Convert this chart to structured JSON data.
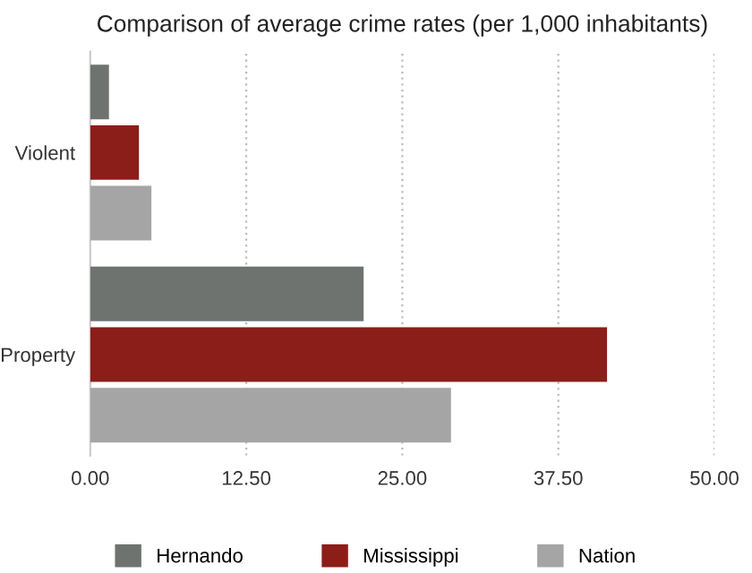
{
  "chart_data": {
    "type": "bar",
    "orientation": "horizontal",
    "title": "Comparison of average crime rates (per 1,000 inhabitants)",
    "categories": [
      "Violent",
      "Property"
    ],
    "series": [
      {
        "name": "Hernando",
        "color": "#6e7370",
        "values": [
          1.5,
          21.9
        ]
      },
      {
        "name": "Mississippi",
        "color": "#8b1e18",
        "values": [
          3.9,
          41.4
        ]
      },
      {
        "name": "Nation",
        "color": "#a5a5a5",
        "values": [
          4.9,
          28.9
        ]
      }
    ],
    "xlim": [
      0,
      50
    ],
    "xticks": [
      {
        "value": 0,
        "label": "0.00"
      },
      {
        "value": 12.5,
        "label": "12.50"
      },
      {
        "value": 25,
        "label": "25.00"
      },
      {
        "value": 37.5,
        "label": "37.50"
      },
      {
        "value": 50,
        "label": "50.00"
      }
    ],
    "grid": "x",
    "legend": "bottom"
  }
}
